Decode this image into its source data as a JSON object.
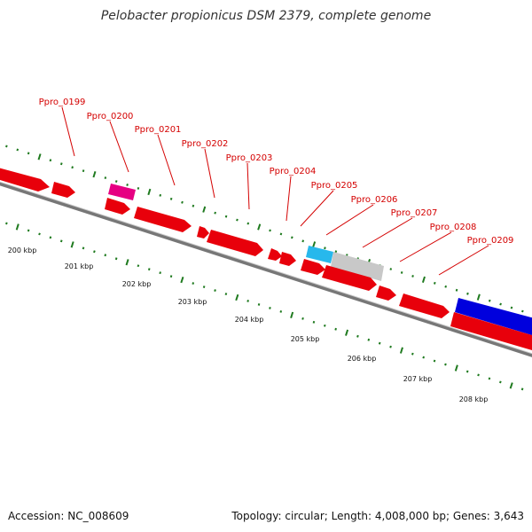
{
  "title": "Pelobacter propionicus DSM 2379, complete genome",
  "footer": {
    "accession": "Accession: NC_008609",
    "summary": "Topology: circular; Length: 4,008,000 bp; Genes: 3,643"
  },
  "colors": {
    "cds": "#e8000b",
    "rna": "#e60082",
    "cyan": "#27b8ec",
    "gray": "#c8c8c8",
    "blue": "#0000dd",
    "backbone": "#777777",
    "tick": "#1f7a1f",
    "label": "#d40000"
  },
  "gene_labels": [
    "Ppro_0199",
    "Ppro_0200",
    "Ppro_0201",
    "Ppro_0202",
    "Ppro_0203",
    "Ppro_0204",
    "Ppro_0205",
    "Ppro_0206",
    "Ppro_0207",
    "Ppro_0208",
    "Ppro_0209"
  ],
  "kbp_labels": [
    "200 kbp",
    "201 kbp",
    "202 kbp",
    "203 kbp",
    "204 kbp",
    "205 kbp",
    "206 kbp",
    "207 kbp",
    "208 kbp"
  ]
}
